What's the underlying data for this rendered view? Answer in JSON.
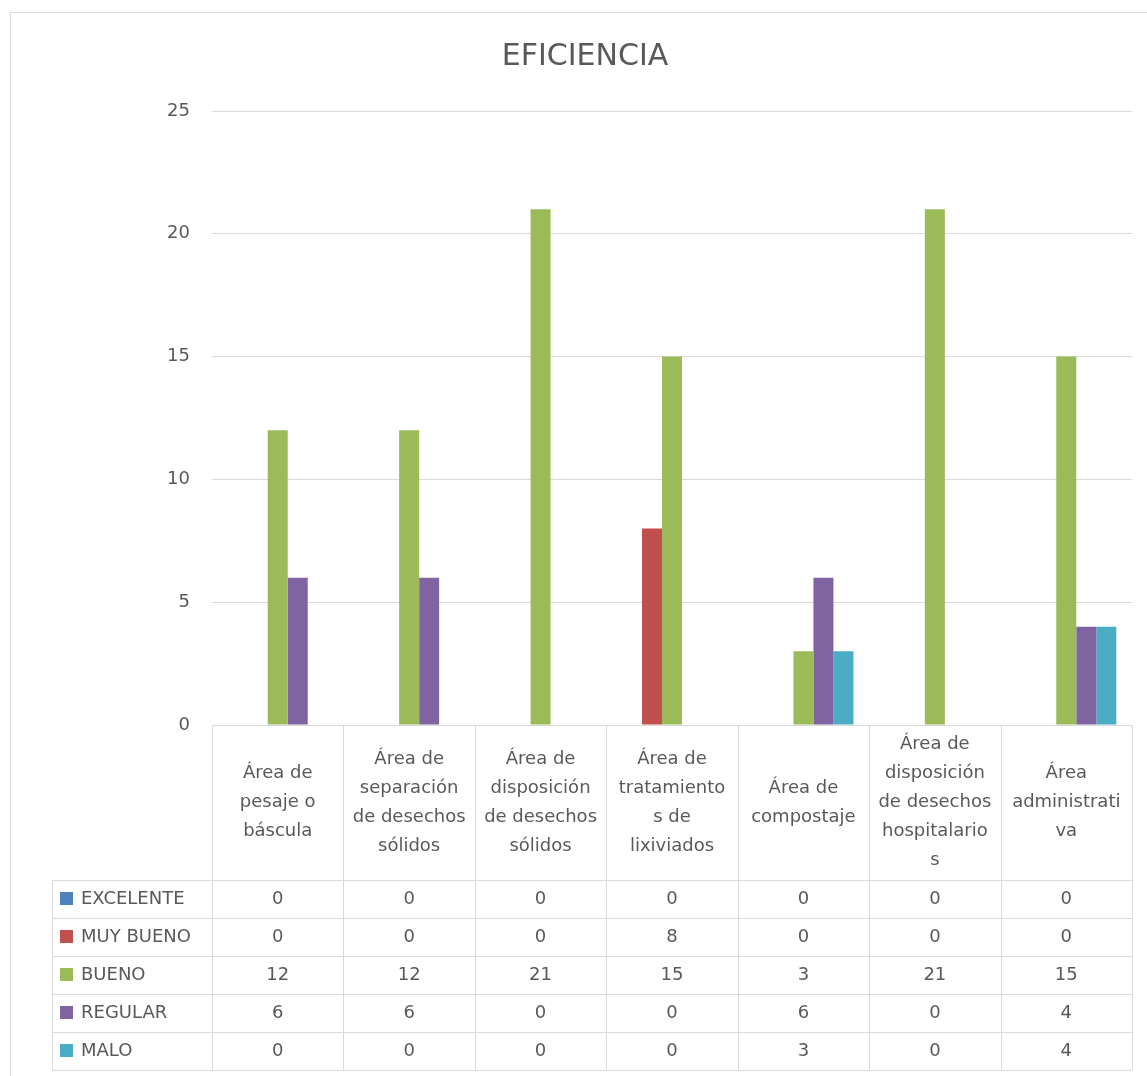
{
  "chart_data": {
    "type": "bar",
    "title": "EFICIENCIA",
    "categories": [
      "Área de pesaje o báscula",
      "Área de separación de desechos sólidos",
      "Área de disposición de desechos sólidos",
      "Área de tratamientos de lixiviados",
      "Área de compostaje",
      "Área de disposición de desechos hospitalarios",
      "Área administrativa"
    ],
    "series": [
      {
        "name": "EXCELENTE",
        "color": "#4f81bd",
        "values": [
          0,
          0,
          0,
          0,
          0,
          0,
          0
        ]
      },
      {
        "name": "MUY BUENO",
        "color": "#c0504d",
        "values": [
          0,
          0,
          0,
          8,
          0,
          0,
          0
        ]
      },
      {
        "name": "BUENO",
        "color": "#9bbb59",
        "values": [
          12,
          12,
          21,
          15,
          3,
          21,
          15
        ]
      },
      {
        "name": "REGULAR",
        "color": "#8064a2",
        "values": [
          6,
          6,
          0,
          0,
          6,
          0,
          4
        ]
      },
      {
        "name": "MALO",
        "color": "#4bacc6",
        "values": [
          0,
          0,
          0,
          0,
          3,
          0,
          4
        ]
      }
    ],
    "ylim": [
      0,
      25
    ],
    "yticks": [
      0,
      5,
      10,
      15,
      20,
      25
    ],
    "grid": "y",
    "legend": "bottom",
    "data_labels": true
  }
}
